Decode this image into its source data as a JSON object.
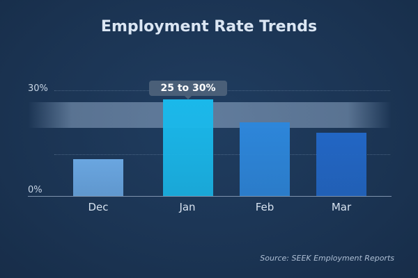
{
  "chart_data": {
    "type": "bar",
    "title": "Employment Rate Trends",
    "categories": [
      "Dec",
      "Jan",
      "Feb",
      "Mar"
    ],
    "values": [
      10.5,
      27.5,
      21,
      18
    ],
    "ylim": [
      0,
      30
    ],
    "yticks": [
      "0%",
      "30%"
    ],
    "grid": true,
    "annotation": {
      "label": "25 to 30%",
      "category": "Jan"
    },
    "colors": [
      "#6aa6e0",
      "#1ab8ea",
      "#2d86da",
      "#2266c4"
    ],
    "source": "Source: SEEK Employment Reports"
  }
}
